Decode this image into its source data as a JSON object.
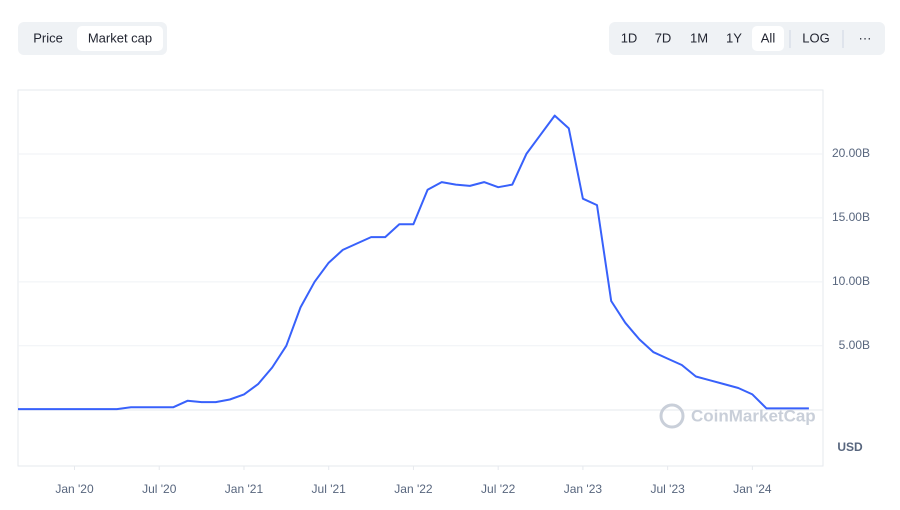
{
  "ui": {
    "tabs": [
      "Price",
      "Market cap"
    ],
    "ranges": [
      "1D",
      "7D",
      "1M",
      "1Y",
      "All",
      "LOG",
      "···"
    ],
    "watermark": "CoinMarketCap",
    "currency": "USD"
  },
  "chart_data": {
    "type": "line",
    "color": "#3861fb",
    "grid": true,
    "x": [
      "2019-09",
      "2019-10",
      "2019-11",
      "2019-12",
      "2020-01",
      "2020-02",
      "2020-03",
      "2020-04",
      "2020-05",
      "2020-06",
      "2020-07",
      "2020-08",
      "2020-09",
      "2020-10",
      "2020-11",
      "2020-12",
      "2021-01",
      "2021-02",
      "2021-03",
      "2021-04",
      "2021-05",
      "2021-06",
      "2021-07",
      "2021-08",
      "2021-09",
      "2021-10",
      "2021-11",
      "2021-12",
      "2022-01",
      "2022-02",
      "2022-03",
      "2022-04",
      "2022-05",
      "2022-06",
      "2022-07",
      "2022-08",
      "2022-09",
      "2022-10",
      "2022-11",
      "2022-12",
      "2023-01",
      "2023-02",
      "2023-03",
      "2023-04",
      "2023-05",
      "2023-06",
      "2023-07",
      "2023-08",
      "2023-09",
      "2023-10",
      "2023-11",
      "2023-12",
      "2024-01",
      "2024-02",
      "2024-03",
      "2024-04",
      "2024-05"
    ],
    "values": [
      0.05,
      0.05,
      0.05,
      0.05,
      0.05,
      0.05,
      0.05,
      0.05,
      0.2,
      0.2,
      0.2,
      0.2,
      0.7,
      0.6,
      0.6,
      0.8,
      1.2,
      2.0,
      3.3,
      5.0,
      8.0,
      10.0,
      11.5,
      12.5,
      13.0,
      13.5,
      13.5,
      14.5,
      14.5,
      17.2,
      17.8,
      17.6,
      17.5,
      17.8,
      17.4,
      17.6,
      20.0,
      21.5,
      23.0,
      22.0,
      16.5,
      16.0,
      8.5,
      6.8,
      5.5,
      4.5,
      4.0,
      3.5,
      2.6,
      2.3,
      2.0,
      1.7,
      1.2,
      0.1,
      0.1,
      0.1,
      0.1
    ],
    "xlim": [
      "2019-09",
      "2024-06"
    ],
    "xticks": [
      {
        "value": "2020-01",
        "label": "Jan '20"
      },
      {
        "value": "2020-07",
        "label": "Jul '20"
      },
      {
        "value": "2021-01",
        "label": "Jan '21"
      },
      {
        "value": "2021-07",
        "label": "Jul '21"
      },
      {
        "value": "2022-01",
        "label": "Jan '22"
      },
      {
        "value": "2022-07",
        "label": "Jul '22"
      },
      {
        "value": "2023-01",
        "label": "Jan '23"
      },
      {
        "value": "2023-07",
        "label": "Jul '23"
      },
      {
        "value": "2024-01",
        "label": "Jan '24"
      }
    ],
    "ylim": [
      -4.4,
      25
    ],
    "yticks": [
      {
        "value": 5,
        "label": "5.00B"
      },
      {
        "value": 10,
        "label": "10.00B"
      },
      {
        "value": 15,
        "label": "15.00B"
      },
      {
        "value": 20,
        "label": "20.00B"
      }
    ]
  }
}
